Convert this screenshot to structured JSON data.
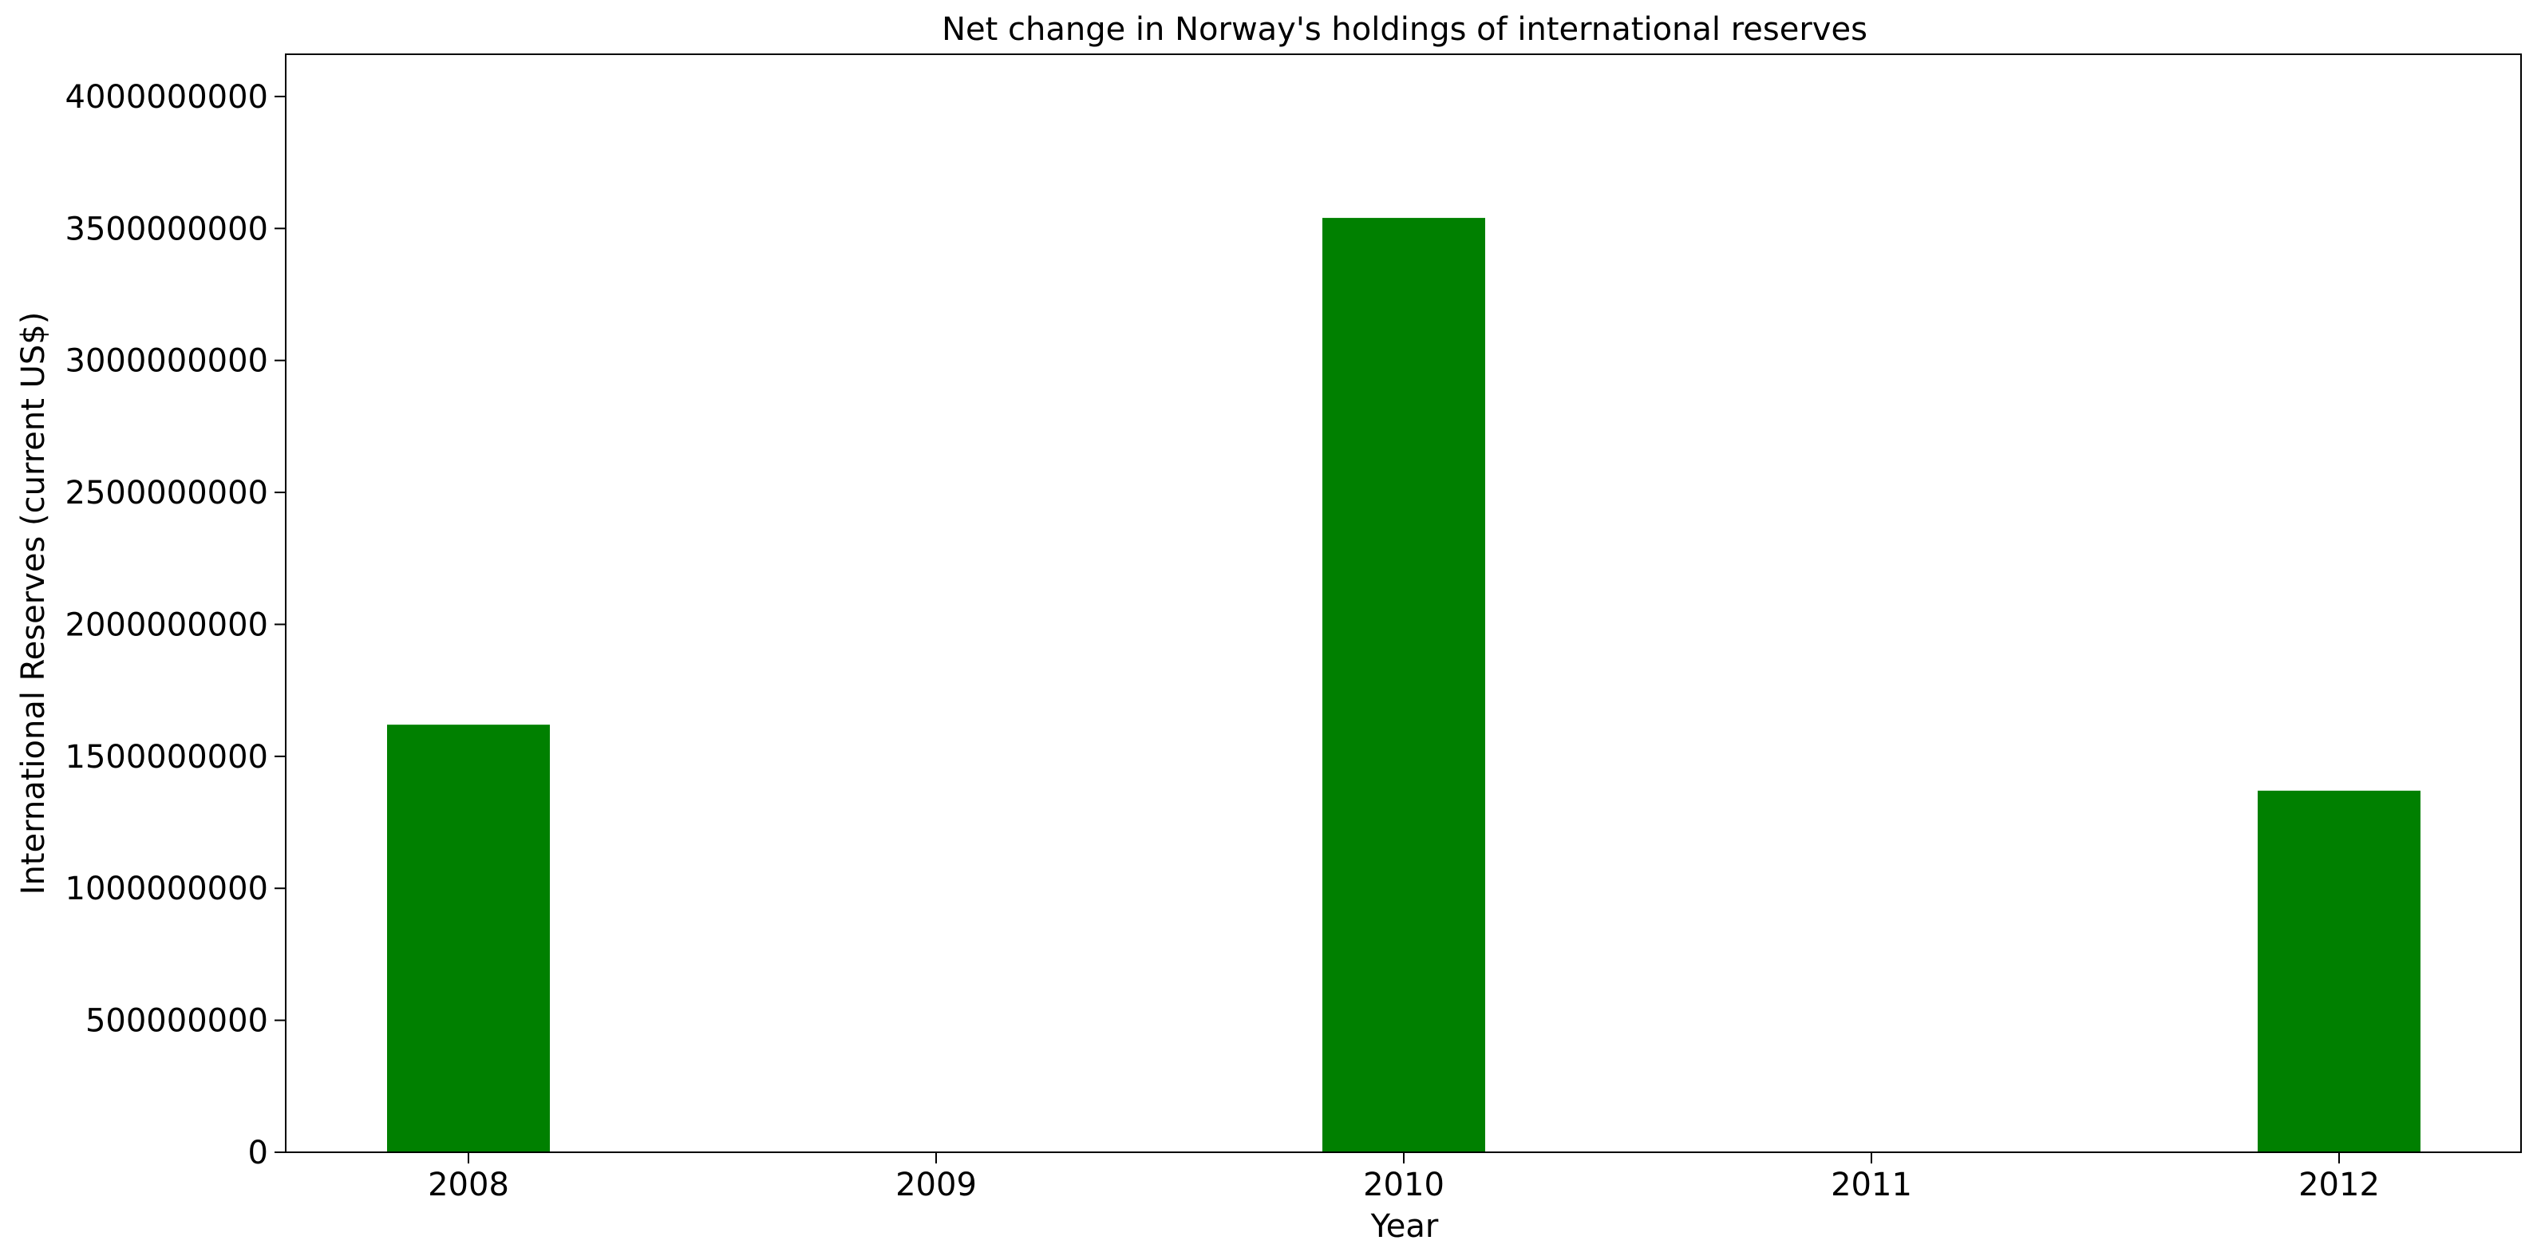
{
  "chart_data": {
    "type": "bar",
    "title": "Net change in Norway's holdings of international reserves",
    "xlabel": "Year",
    "ylabel": "International Reserves (current US$)",
    "categories": [
      "2008",
      "2009",
      "2010",
      "2011",
      "2012"
    ],
    "values": [
      1620000000,
      0,
      3540000000,
      0,
      1370000000
    ],
    "ylim": [
      0,
      4160000000
    ],
    "yticks": [
      0,
      500000000,
      1000000000,
      1500000000,
      2000000000,
      2500000000,
      3000000000,
      3500000000,
      4000000000
    ],
    "ytick_labels": [
      "0",
      "500000000",
      "1000000000",
      "1500000000",
      "2000000000",
      "2500000000",
      "3000000000",
      "3500000000",
      "4000000000"
    ],
    "bar_color": "#008000",
    "grid": false,
    "legend": "none"
  }
}
